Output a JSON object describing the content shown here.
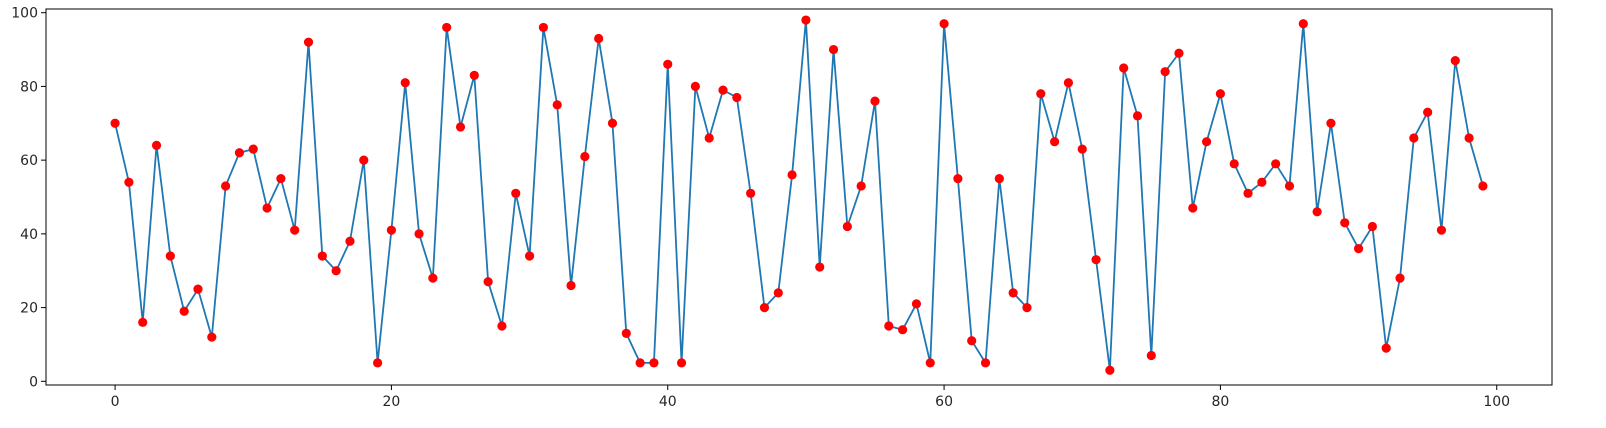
{
  "chart_data": {
    "type": "line",
    "title": "",
    "xlabel": "",
    "ylabel": "",
    "xlim": [
      -5,
      104
    ],
    "ylim": [
      -1,
      101
    ],
    "grid": false,
    "legend": "none",
    "line_color": "#1f77b4",
    "marker_color": "#ff0000",
    "x_ticks": [
      0,
      20,
      40,
      60,
      80,
      100
    ],
    "y_ticks": [
      0,
      20,
      40,
      60,
      80,
      100
    ],
    "x_tick_labels": [
      "0",
      "20",
      "40",
      "60",
      "80",
      "100"
    ],
    "y_tick_labels": [
      "0",
      "20",
      "40",
      "60",
      "80",
      "100"
    ],
    "series": [
      {
        "x": [
          0,
          1,
          2,
          3,
          4,
          5,
          6,
          7,
          8,
          9,
          10,
          11,
          12,
          13,
          14,
          15,
          16,
          17,
          18,
          19,
          20,
          21,
          22,
          23,
          24,
          25,
          26,
          27,
          28,
          29,
          30,
          31,
          32,
          33,
          34,
          35,
          36,
          37,
          38,
          39,
          40,
          41,
          42,
          43,
          44,
          45,
          46,
          47,
          48,
          49,
          50,
          51,
          52,
          53,
          54,
          55,
          56,
          57,
          58,
          59,
          60,
          61,
          62,
          63,
          64,
          65,
          66,
          67,
          68,
          69,
          70,
          71,
          72,
          73,
          74,
          75,
          76,
          77,
          78,
          79,
          80,
          81,
          82,
          83,
          84,
          85,
          86,
          87,
          88,
          89,
          90,
          91,
          92,
          93,
          94,
          95,
          96,
          97,
          98,
          99
        ],
        "y": [
          70,
          54,
          16,
          64,
          34,
          19,
          25,
          12,
          53,
          62,
          63,
          47,
          55,
          41,
          92,
          34,
          30,
          38,
          60,
          5,
          41,
          81,
          40,
          28,
          96,
          69,
          83,
          27,
          15,
          51,
          34,
          96,
          75,
          26,
          61,
          93,
          70,
          13,
          5,
          5,
          86,
          5,
          80,
          66,
          79,
          77,
          51,
          20,
          24,
          56,
          98,
          31,
          90,
          42,
          53,
          76,
          15,
          14,
          21,
          5,
          97,
          55,
          11,
          5,
          55,
          24,
          20,
          78,
          65,
          81,
          63,
          33,
          3,
          85,
          72,
          7,
          84,
          89,
          47,
          65,
          78,
          59,
          51,
          54,
          59,
          53,
          97,
          46,
          70,
          43,
          36,
          42,
          9,
          28,
          66,
          73,
          41,
          87,
          66,
          53
        ]
      }
    ]
  }
}
